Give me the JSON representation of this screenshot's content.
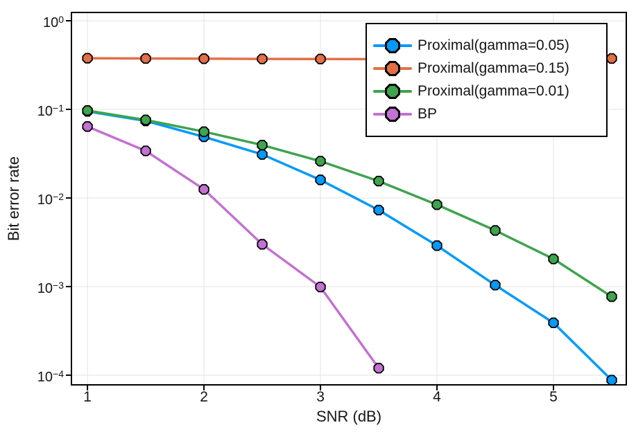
{
  "chart_data": {
    "type": "line",
    "yscale": "log",
    "title": "",
    "xlabel": "SNR (dB)",
    "ylabel": "Bit error rate",
    "x": [
      1.0,
      1.5,
      2.0,
      2.5,
      3.0,
      3.5,
      4.0,
      4.5,
      5.0,
      5.5
    ],
    "series": [
      {
        "name": "Proximal(gamma=0.05)",
        "color": "#009AFA",
        "values": [
          0.095,
          0.074,
          0.049,
          0.031,
          0.016,
          0.0073,
          0.0029,
          0.00104,
          0.00039,
          8.8e-05
        ]
      },
      {
        "name": "Proximal(gamma=0.15)",
        "color": "#E36F47",
        "values": [
          0.378,
          0.375,
          0.373,
          0.371,
          0.37,
          0.369,
          0.369,
          0.37,
          0.372,
          0.375
        ]
      },
      {
        "name": "Proximal(gamma=0.01)",
        "color": "#3EA44E",
        "values": [
          0.097,
          0.076,
          0.056,
          0.0395,
          0.026,
          0.0155,
          0.0084,
          0.0043,
          0.00205,
          0.00077
        ]
      },
      {
        "name": "BP",
        "color": "#C371D2",
        "values": [
          0.064,
          0.034,
          0.0125,
          0.003,
          0.00099,
          0.00012
        ]
      }
    ],
    "marker": {
      "shape": "octagon",
      "stroke_color": "#000000",
      "radius": 7.3,
      "stroke_width": 1.8
    },
    "line_width": 3.5,
    "axis": {
      "frame_color": "#000000",
      "grid": true,
      "grid_color": "#E3E3E3"
    },
    "xticks": {
      "values": [
        1,
        2,
        3,
        4,
        5
      ],
      "labels": [
        "1",
        "2",
        "3",
        "4",
        "5"
      ]
    },
    "yticks": [
      {
        "value": 1,
        "base": "10",
        "exp": "0"
      },
      {
        "value": 0.1,
        "base": "10",
        "exp": "−1"
      },
      {
        "value": 0.01,
        "base": "10",
        "exp": "−2"
      },
      {
        "value": 0.001,
        "base": "10",
        "exp": "−3"
      },
      {
        "value": 0.0001,
        "base": "10",
        "exp": "−4"
      }
    ],
    "xlim": [
      0.8626,
      5.625
    ],
    "ylim_exp": [
      -4.109,
      0.0937
    ],
    "legend_position": "top-right"
  }
}
